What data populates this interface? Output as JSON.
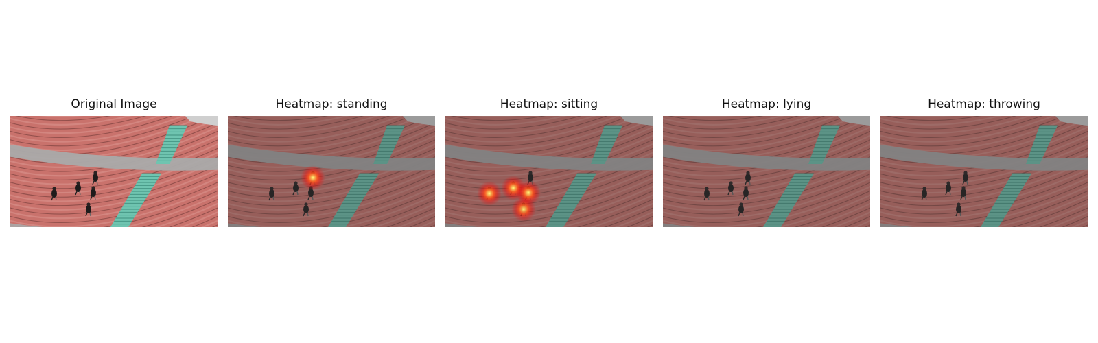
{
  "figure": {
    "panels": [
      {
        "id": "original",
        "title": "Original Image",
        "overlay": "none",
        "dim": 0
      },
      {
        "id": "standing",
        "title": "Heatmap: standing",
        "overlay": "heatmap",
        "dim": 0.35,
        "hotspots": [
          {
            "person": 2,
            "intensity": 1.0
          }
        ]
      },
      {
        "id": "sitting",
        "title": "Heatmap: sitting",
        "overlay": "heatmap",
        "dim": 0.35,
        "hotspots": [
          {
            "person": 0,
            "intensity": 1.0
          },
          {
            "person": 1,
            "intensity": 1.0
          },
          {
            "person": 3,
            "intensity": 1.0
          },
          {
            "person": 4,
            "intensity": 0.95
          }
        ]
      },
      {
        "id": "lying",
        "title": "Heatmap: lying",
        "overlay": "heatmap",
        "dim": 0.35,
        "hotspots": []
      },
      {
        "id": "throwing",
        "title": "Heatmap: throwing",
        "overlay": "heatmap",
        "dim": 0.35,
        "hotspots": []
      }
    ],
    "colors": {
      "track": "#c9726c",
      "track_light": "#d58a84",
      "aisle": "#aaaaaa",
      "stairs": "#6fc4b0",
      "heat_hot": "#ffff80",
      "heat_mid": "#ff5a1f",
      "heat_edge": "#ff0000"
    }
  }
}
